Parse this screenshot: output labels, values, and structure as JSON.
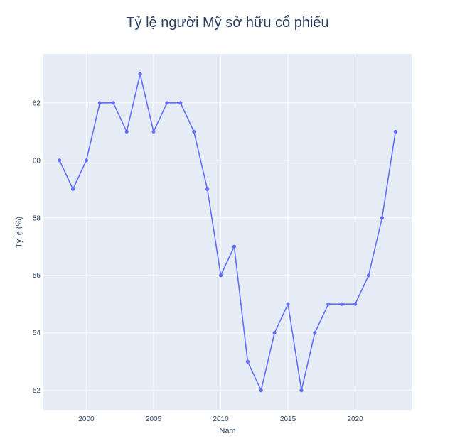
{
  "chart_data": {
    "type": "line",
    "title": "Tỷ lệ người Mỹ sở hữu cổ phiếu",
    "xlabel": "Năm",
    "ylabel": "Tỷ lệ (%)",
    "x": [
      1998,
      1999,
      2000,
      2001,
      2002,
      2003,
      2004,
      2005,
      2006,
      2007,
      2008,
      2009,
      2010,
      2011,
      2012,
      2013,
      2014,
      2015,
      2016,
      2017,
      2018,
      2019,
      2020,
      2021,
      2022,
      2023
    ],
    "series": [
      {
        "values": [
          60,
          59,
          60,
          62,
          62,
          61,
          63,
          61,
          62,
          62,
          61,
          59,
          56,
          57,
          53,
          52,
          54,
          55,
          52,
          54,
          55,
          55,
          55,
          56,
          58,
          61
        ]
      }
    ],
    "xlim": [
      1996.8,
      2024.2
    ],
    "ylim": [
      51.3,
      63.7
    ],
    "x_ticks": [
      "2000",
      "2005",
      "2010",
      "2015",
      "2020"
    ],
    "y_ticks": [
      "52",
      "54",
      "56",
      "58",
      "60",
      "62"
    ],
    "grid": true,
    "colors": {
      "plot_bg": "#e5ecf6",
      "grid": "#ffffff",
      "line": "#636efa",
      "text": "#2a3f5f"
    }
  }
}
